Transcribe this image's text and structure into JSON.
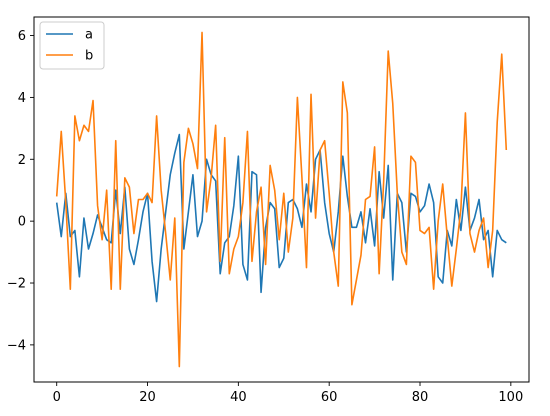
{
  "chart_data": {
    "type": "line",
    "title": "",
    "xlabel": "",
    "ylabel": "",
    "xlim": [
      -5,
      104
    ],
    "ylim": [
      -5.2,
      6.6
    ],
    "x_ticks": [
      0,
      20,
      40,
      60,
      80,
      100
    ],
    "x_tick_labels": [
      "0",
      "20",
      "40",
      "60",
      "80",
      "100"
    ],
    "y_ticks": [
      -4,
      -2,
      0,
      2,
      4,
      6
    ],
    "y_tick_labels": [
      "−4",
      "−2",
      "0",
      "2",
      "4",
      "6"
    ],
    "grid": false,
    "legend": "top-left",
    "x": [
      0,
      1,
      2,
      3,
      4,
      5,
      6,
      7,
      8,
      9,
      10,
      11,
      12,
      13,
      14,
      15,
      16,
      17,
      18,
      19,
      20,
      21,
      22,
      23,
      24,
      25,
      26,
      27,
      28,
      29,
      30,
      31,
      32,
      33,
      34,
      35,
      36,
      37,
      38,
      39,
      40,
      41,
      42,
      43,
      44,
      45,
      46,
      47,
      48,
      49,
      50,
      51,
      52,
      53,
      54,
      55,
      56,
      57,
      58,
      59,
      60,
      61,
      62,
      63,
      64,
      65,
      66,
      67,
      68,
      69,
      70,
      71,
      72,
      73,
      74,
      75,
      76,
      77,
      78,
      79,
      80,
      81,
      82,
      83,
      84,
      85,
      86,
      87,
      88,
      89,
      90,
      91,
      92,
      93,
      94,
      95,
      96,
      97,
      98,
      99
    ],
    "series": [
      {
        "name": "a",
        "color": "#1f77b4",
        "values": [
          0.6,
          -0.5,
          0.9,
          -0.5,
          -0.3,
          -1.8,
          0.1,
          -0.9,
          -0.4,
          0.2,
          -0.2,
          -0.6,
          -0.7,
          1.0,
          -0.4,
          1.1,
          -0.9,
          -1.4,
          -0.6,
          0.3,
          0.9,
          -1.3,
          -2.6,
          -0.9,
          0.3,
          1.5,
          2.2,
          2.8,
          -0.9,
          0.3,
          1.5,
          -0.5,
          0.0,
          2.0,
          1.5,
          1.3,
          -1.7,
          -0.7,
          -0.5,
          0.5,
          2.1,
          -1.4,
          -1.9,
          1.6,
          1.5,
          -2.3,
          -0.2,
          0.6,
          0.4,
          -1.5,
          -1.2,
          0.6,
          0.7,
          0.4,
          -0.2,
          1.2,
          0.3,
          2.0,
          2.3,
          0.6,
          -0.4,
          -1.0,
          0.3,
          2.1,
          0.8,
          -0.2,
          -0.2,
          0.3,
          -0.7,
          0.4,
          -0.8,
          1.6,
          0.1,
          1.8,
          -1.9,
          0.9,
          0.6,
          -1.0,
          0.9,
          0.8,
          0.3,
          0.5,
          1.2,
          0.6,
          -1.8,
          -2.0,
          -0.3,
          -0.8,
          0.7,
          -0.3,
          1.1,
          -0.3,
          0.1,
          0.7,
          -0.6,
          -0.3,
          -1.8,
          -0.3,
          -0.6,
          -0.7
        ]
      },
      {
        "name": "b",
        "color": "#ff7f0e",
        "values": [
          0.8,
          2.9,
          0.6,
          -2.2,
          3.4,
          2.6,
          3.1,
          2.9,
          3.9,
          0.5,
          -0.6,
          1.0,
          -2.2,
          2.6,
          -2.2,
          1.4,
          1.1,
          -0.4,
          0.7,
          0.7,
          0.9,
          0.6,
          3.4,
          1.0,
          -0.4,
          -1.9,
          0.1,
          -4.7,
          1.9,
          3.0,
          2.5,
          1.7,
          6.1,
          0.3,
          1.4,
          3.1,
          -1.3,
          2.7,
          -1.7,
          -0.9,
          -0.5,
          0.6,
          2.9,
          -1.3,
          0.3,
          1.1,
          -1.4,
          1.8,
          1.0,
          -0.6,
          0.9,
          -1.0,
          0.1,
          4.0,
          1.4,
          -1.5,
          4.1,
          0.1,
          2.3,
          2.6,
          0.9,
          -1.0,
          -2.1,
          4.5,
          3.5,
          -2.7,
          -1.9,
          -1.1,
          0.7,
          0.8,
          2.4,
          -1.7,
          1.3,
          5.5,
          3.8,
          0.9,
          -1.0,
          -1.4,
          2.1,
          1.9,
          -0.3,
          -0.4,
          -0.2,
          -2.2,
          0.0,
          1.2,
          -0.5,
          -2.1,
          -0.9,
          0.4,
          3.5,
          -0.4,
          -1.0,
          -0.3,
          0.1,
          -1.5,
          -0.3,
          3.2,
          5.4,
          2.3
        ]
      }
    ]
  }
}
